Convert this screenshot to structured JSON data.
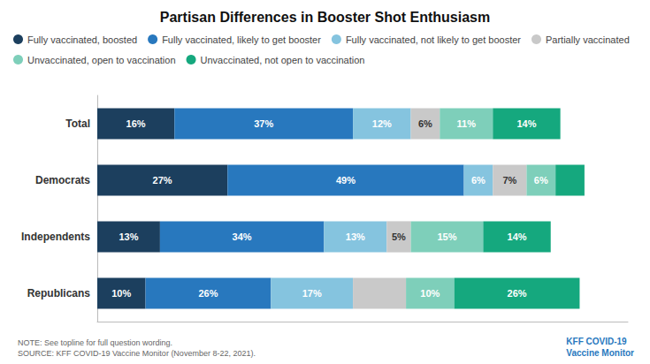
{
  "chart_data": {
    "type": "bar",
    "orientation": "horizontal",
    "stacked": true,
    "title": "Partisan Differences in Booster Shot Enthusiasm",
    "categories": [
      "Total",
      "Democrats",
      "Independents",
      "Republicans"
    ],
    "series": [
      {
        "name": "Fully vaccinated, boosted",
        "color": "#1c3f5e",
        "values": [
          16,
          27,
          13,
          10
        ],
        "value_labels": [
          "16%",
          "27%",
          "13%",
          "10%"
        ]
      },
      {
        "name": "Fully vaccinated, likely to get booster",
        "color": "#2878be",
        "values": [
          37,
          49,
          34,
          26
        ],
        "value_labels": [
          "37%",
          "49%",
          "34%",
          "26%"
        ]
      },
      {
        "name": "Fully vaccinated, not likely to get booster",
        "color": "#85c4df",
        "values": [
          12,
          6,
          13,
          17
        ],
        "value_labels": [
          "12%",
          "6%",
          "13%",
          "17%"
        ]
      },
      {
        "name": "Partially vaccinated",
        "color": "#c9c9c9",
        "values": [
          6,
          7,
          5,
          11
        ],
        "value_labels": [
          "6%",
          "7%",
          "5%",
          null
        ]
      },
      {
        "name": "Unvaccinated, open to vaccination",
        "color": "#7ecfba",
        "values": [
          11,
          6,
          15,
          10
        ],
        "value_labels": [
          "11%",
          "6%",
          "15%",
          "10%"
        ]
      },
      {
        "name": "Unvaccinated, not open to vaccination",
        "color": "#15a87e",
        "values": [
          14,
          6,
          14,
          26
        ],
        "value_labels": [
          "14%",
          null,
          "14%",
          "26%"
        ]
      }
    ],
    "xlim": [
      0,
      110
    ],
    "grid": false,
    "legend": "top",
    "data_labels": true,
    "tick_labels": "y",
    "annotations": [
      "NOTE: See topline for full question wording.",
      "SOURCE: KFF COVID-19 Vaccine Monitor (November 8-22, 2021).",
      "KFF COVID-19",
      "Vaccine Monitor"
    ]
  }
}
